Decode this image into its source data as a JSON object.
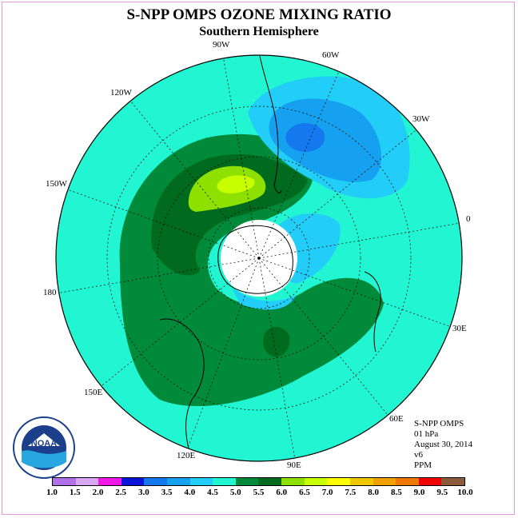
{
  "title": "S-NPP OMPS OZONE MIXING RATIO",
  "subtitle": "Southern Hemisphere",
  "lon_labels": [
    "90W",
    "60W",
    "30W",
    "0",
    "30E",
    "60E",
    "90E",
    "120E",
    "150E",
    "180",
    "150W",
    "120W"
  ],
  "logo_text": "NOAA",
  "info": {
    "instrument": "S-NPP OMPS",
    "level": "01 hPa",
    "date": "August 30, 2014",
    "version": "v6",
    "units": "PPM"
  },
  "colorbar": {
    "labels": [
      "1.0",
      "1.5",
      "2.0",
      "2.5",
      "3.0",
      "3.5",
      "4.0",
      "4.5",
      "5.0",
      "5.5",
      "6.0",
      "6.5",
      "7.0",
      "7.5",
      "8.0",
      "8.5",
      "9.0",
      "9.5",
      "10.0"
    ],
    "colors": [
      "#b070e8",
      "#d8a6f2",
      "#f018e8",
      "#0a14d8",
      "#1478ee",
      "#16a0f0",
      "#22cdf8",
      "#22f5d2",
      "#008a3a",
      "#006a1e",
      "#8ee000",
      "#c8ff00",
      "#ffff00",
      "#f0c800",
      "#f0a000",
      "#f07800",
      "#f00000",
      "#8c5a3c"
    ]
  }
}
